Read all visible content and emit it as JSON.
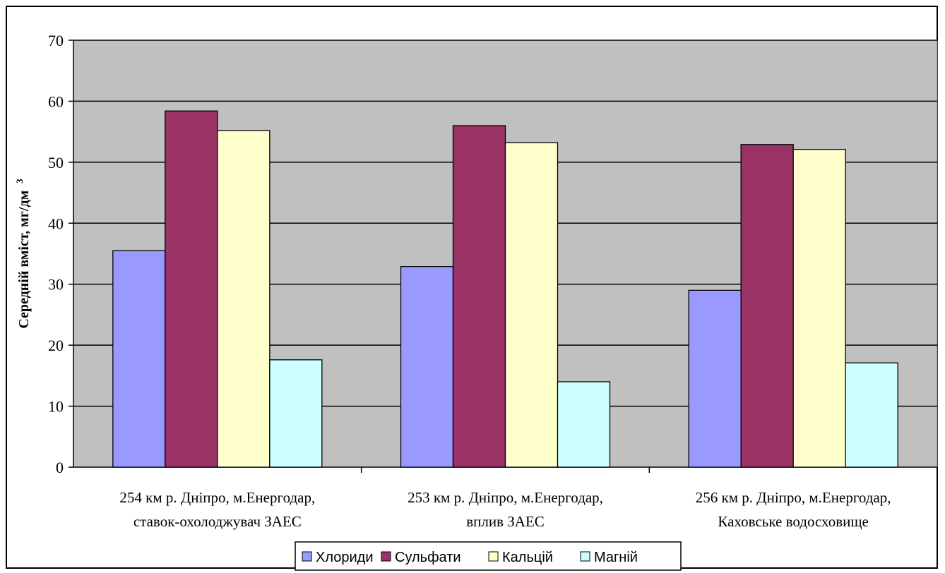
{
  "chart_data": {
    "type": "bar",
    "title": "",
    "ylabel": "Середній вміст, мг/дм",
    "ylabel_superscript": "3",
    "ylim": [
      0,
      70
    ],
    "yticks": [
      0,
      10,
      20,
      30,
      40,
      50,
      60,
      70
    ],
    "grid": true,
    "legend_position": "bottom",
    "categories": [
      [
        "254 км р. Дніпро, м.Енергодар,",
        "ставок-охолоджувач ЗАЕС"
      ],
      [
        "253 км р. Дніпро, м.Енергодар,",
        "вплив ЗАЕС"
      ],
      [
        "256 км р. Дніпро, м.Енергодар,",
        "Каховське водосховище"
      ]
    ],
    "series": [
      {
        "name": "Хлориди",
        "color": "#9999FF",
        "values": [
          35.5,
          32.9,
          29.0
        ]
      },
      {
        "name": "Сульфати",
        "color": "#993366",
        "values": [
          58.4,
          56.0,
          52.9
        ]
      },
      {
        "name": "Кальцій",
        "color": "#FFFFCC",
        "values": [
          55.2,
          53.2,
          52.1
        ]
      },
      {
        "name": "Магній",
        "color": "#CCFFFF",
        "values": [
          17.6,
          14.0,
          17.1
        ]
      }
    ],
    "plot_background": "#C0C0C0"
  }
}
